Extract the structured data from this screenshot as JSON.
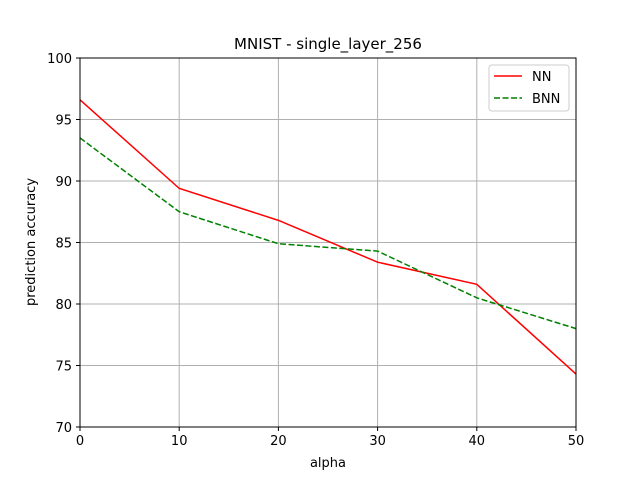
{
  "chart_data": {
    "type": "line",
    "title": "MNIST - single_layer_256",
    "xlabel": "alpha",
    "ylabel": "prediction accuracy",
    "xlim": [
      0,
      50
    ],
    "ylim": [
      70,
      100
    ],
    "x_ticks": [
      "0",
      "10",
      "20",
      "30",
      "40",
      "50"
    ],
    "y_ticks": [
      "70",
      "75",
      "80",
      "85",
      "90",
      "95",
      "100"
    ],
    "grid": true,
    "legend_position": "top-right",
    "x": [
      0,
      10,
      20,
      30,
      40,
      50
    ],
    "series": [
      {
        "name": "NN",
        "color": "#ff0000",
        "style": "solid",
        "values": [
          96.6,
          89.4,
          86.8,
          83.4,
          81.6,
          74.3
        ]
      },
      {
        "name": "BNN",
        "color": "#008000",
        "style": "dashed",
        "values": [
          93.5,
          87.5,
          84.9,
          84.3,
          80.5,
          78.0
        ]
      }
    ]
  }
}
